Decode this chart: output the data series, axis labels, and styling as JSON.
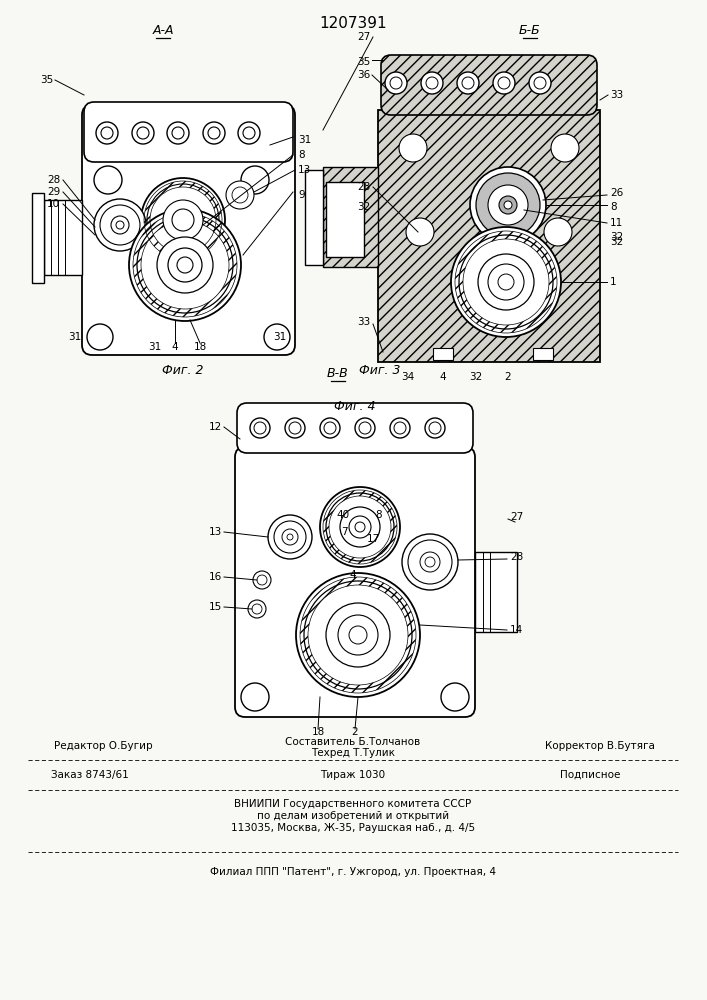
{
  "title": "1207391",
  "bg": "#f8f8f4",
  "fig2_label": "Фиг. 2",
  "fig3_label": "Фиг. 3",
  "fig4_label": "Фиг. 4",
  "sec_AA": "А-А",
  "sec_BB": "Б-Б",
  "sec_VV": "В-В",
  "footer1a": "Редактор О.Бугир",
  "footer1b": "Составитель Б.Толчанов",
  "footer1c": "Корректор В.Бутяга",
  "footer1d": "Техред Т.Тулик",
  "footer2a": "Заказ 8743/61",
  "footer2b": "Тираж 1030",
  "footer2c": "Подписное",
  "footer3a": "ВНИИПИ Государственного комитета СССР",
  "footer3b": "по делам изобретений и открытий",
  "footer3c": "113035, Москва, Ж-35, Раушская наб., д. 4/5",
  "footer4": "Филиал ППП \"Патент\", г. Ужгород, ул. Проектная, 4"
}
